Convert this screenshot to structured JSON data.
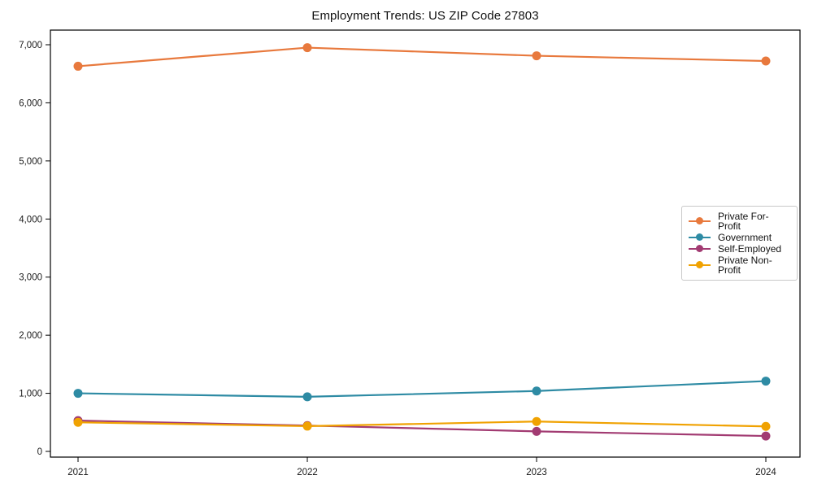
{
  "chart_data": {
    "type": "line",
    "title": "Employment Trends: US ZIP Code 27803",
    "xlabel": "",
    "ylabel": "",
    "x": [
      "2021",
      "2022",
      "2023",
      "2024"
    ],
    "series": [
      {
        "name": "Private For-Profit",
        "color": "#E8793D",
        "values": [
          6630,
          6950,
          6810,
          6720
        ]
      },
      {
        "name": "Government",
        "color": "#2E8BA4",
        "values": [
          1000,
          940,
          1040,
          1210
        ]
      },
      {
        "name": "Self-Employed",
        "color": "#A23B72",
        "values": [
          530,
          445,
          345,
          265
        ]
      },
      {
        "name": "Private Non-Profit",
        "color": "#F0A202",
        "values": [
          500,
          435,
          515,
          430
        ]
      }
    ],
    "yticks": [
      0,
      1000,
      2000,
      3000,
      4000,
      5000,
      6000,
      7000
    ],
    "ytick_labels": [
      "0",
      "1,000",
      "2,000",
      "3,000",
      "4,000",
      "5,000",
      "6,000",
      "7,000"
    ],
    "ylim": [
      -100,
      7250
    ],
    "grid": false,
    "legend_position": "center-right",
    "frame_color": "#000000",
    "background_color": "#ffffff"
  }
}
